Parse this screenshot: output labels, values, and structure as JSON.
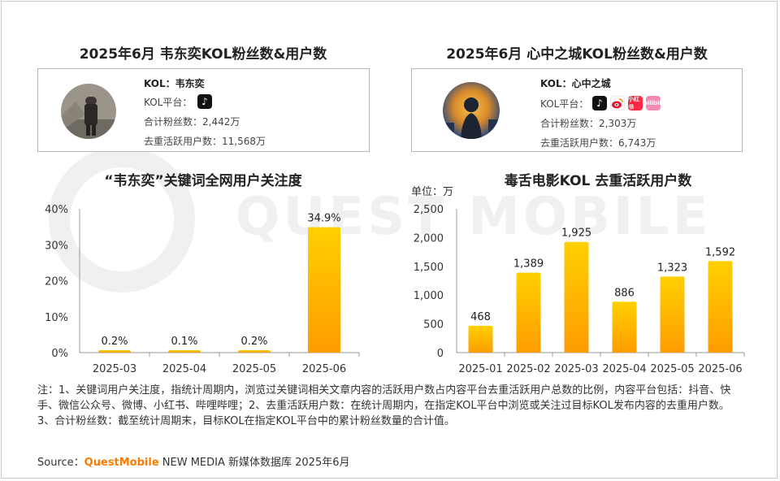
{
  "left_panel": {
    "title": "2025年6月 韦东奕KOL粉丝数&用户数",
    "kol_name": "KOL：韦东奕",
    "platform_label": "KOL平台：",
    "platforms": [
      "douyin-icon"
    ],
    "fans": "合计粉丝数：2,442万",
    "users": "去重活跃用户数：11,568万"
  },
  "right_panel": {
    "title": "2025年6月 心中之城KOL粉丝数&用户数",
    "kol_name": "KOL：心中之城",
    "platform_label": "KOL平台：",
    "platforms": [
      "douyin-icon",
      "weibo-icon",
      "xiaohongshu-icon",
      "bilibili-icon"
    ],
    "platform_texts": {
      "xiaohongshu": "小红书",
      "bilibili": "bilibili"
    },
    "fans": "合计粉丝数：2,303万",
    "users": "去重活跃用户数：6,743万"
  },
  "colors": {
    "bar_top": "#ffd000",
    "bar_bottom": "#ff9c00",
    "axis": "#999999"
  },
  "chart_data": [
    {
      "type": "bar",
      "title": "“韦东奕”关键词全网用户关注度",
      "categories": [
        "2025-03",
        "2025-04",
        "2025-05",
        "2025-06"
      ],
      "values": [
        0.2,
        0.1,
        0.2,
        34.9
      ],
      "value_labels": [
        "0.2%",
        "0.1%",
        "0.2%",
        "34.9%"
      ],
      "y_ticks": [
        "0%",
        "10%",
        "20%",
        "30%",
        "40%"
      ],
      "ylim": [
        0,
        40
      ],
      "unit_label": ""
    },
    {
      "type": "bar",
      "title": "毒舌电影KOL 去重活跃用户数",
      "categories": [
        "2025-01",
        "2025-02",
        "2025-03",
        "2025-04",
        "2025-05",
        "2025-06"
      ],
      "values": [
        468,
        1389,
        1925,
        886,
        1323,
        1592
      ],
      "value_labels": [
        "468",
        "1,389",
        "1,925",
        "886",
        "1,323",
        "1,592"
      ],
      "y_ticks": [
        "0",
        "500",
        "1,000",
        "1,500",
        "2,000",
        "2,500"
      ],
      "ylim": [
        0,
        2500
      ],
      "unit_label": "单位：万"
    }
  ],
  "note": "注：1、关键词用户关注度，指统计周期内，浏览过关键词相关文章内容的活跃用户数占内容平台去重活跃用户总数的比例，内容平台包括：抖音、快手、微信公众号、微博、小红书、哔哩哔哩；2、去重活跃用户数：在统计周期内，在指定KOL平台中浏览或关注过目标KOL发布内容的去重用户数。3、合计粉丝数：截至统计周期末，目标KOL在指定KOL平台中的累计粉丝数量的合计值。",
  "source": {
    "label": "Source：",
    "brand": "QuestMobile",
    "rest": " NEW MEDIA 新媒体数据库 2025年6月"
  },
  "watermark": "QUEST MOBILE"
}
